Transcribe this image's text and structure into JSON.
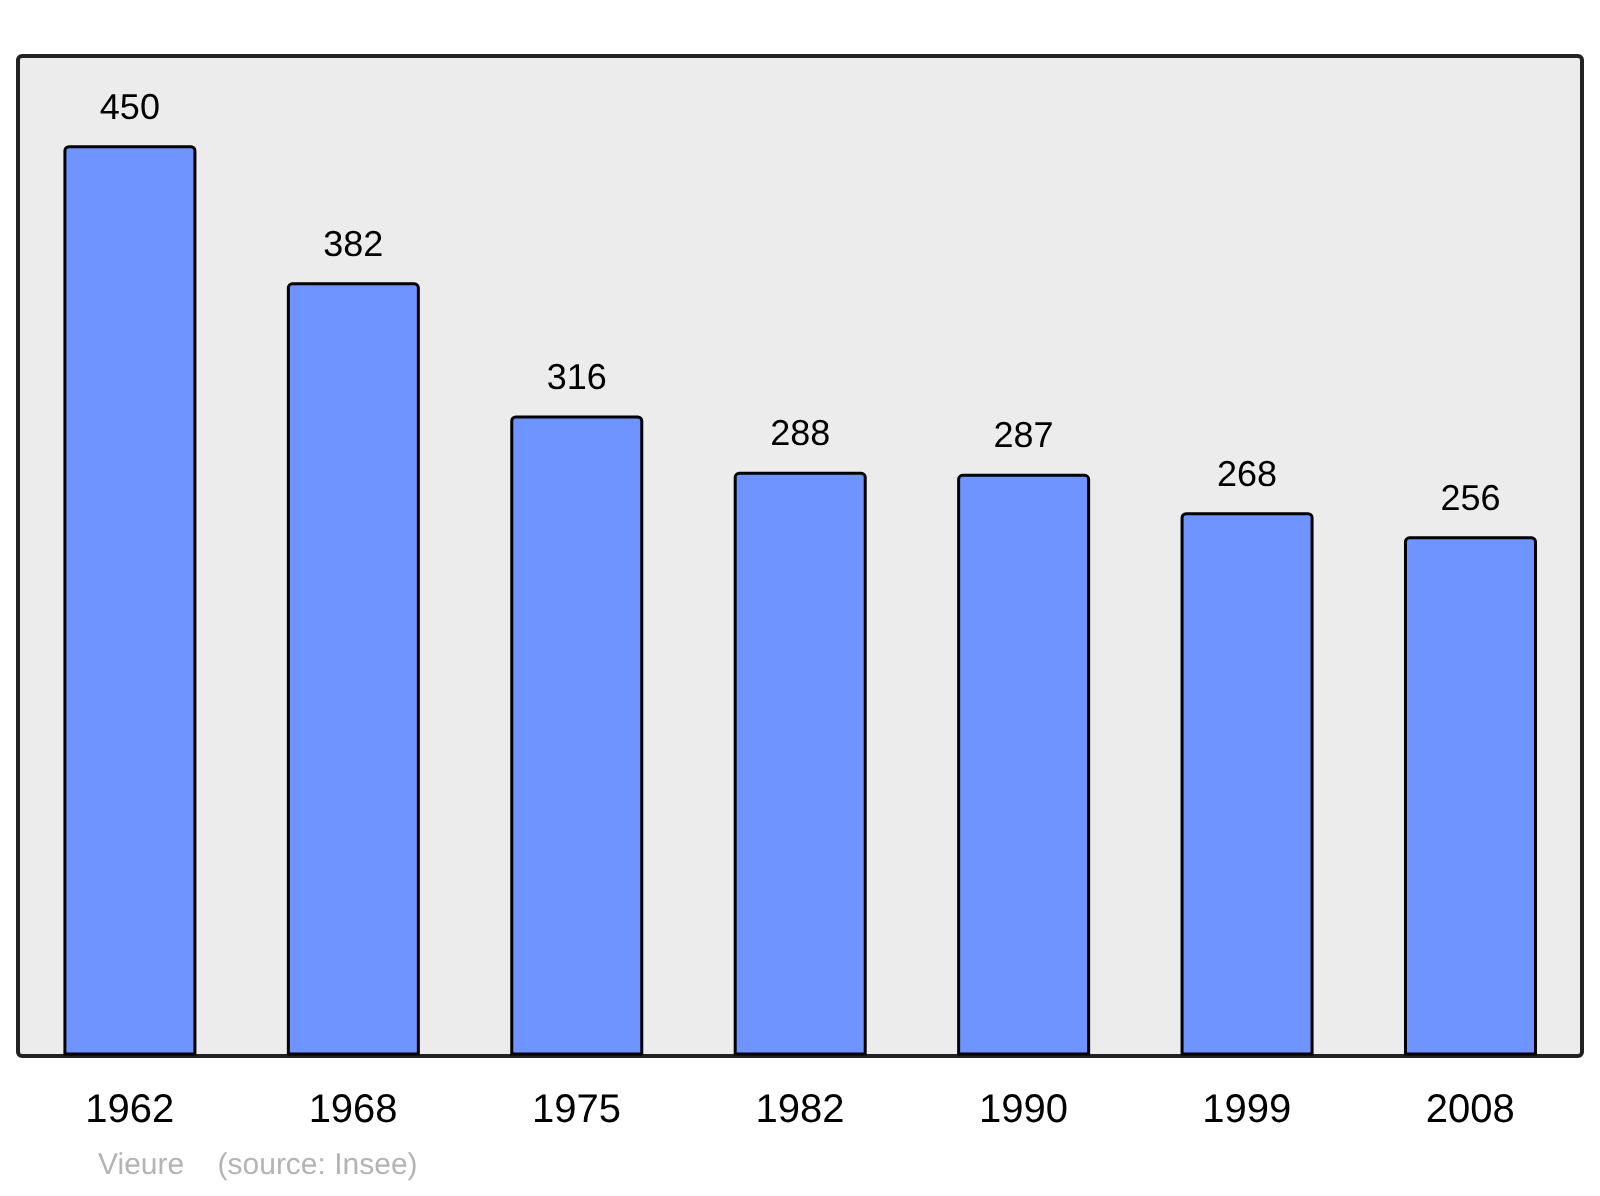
{
  "chart_data": {
    "type": "bar",
    "categories": [
      "1962",
      "1968",
      "1975",
      "1982",
      "1990",
      "1999",
      "2008"
    ],
    "values": [
      450,
      382,
      316,
      288,
      287,
      268,
      256
    ],
    "color": "#7094ff",
    "data_labels": true,
    "annotations": [
      "Vieure    (source: Insee)"
    ]
  }
}
